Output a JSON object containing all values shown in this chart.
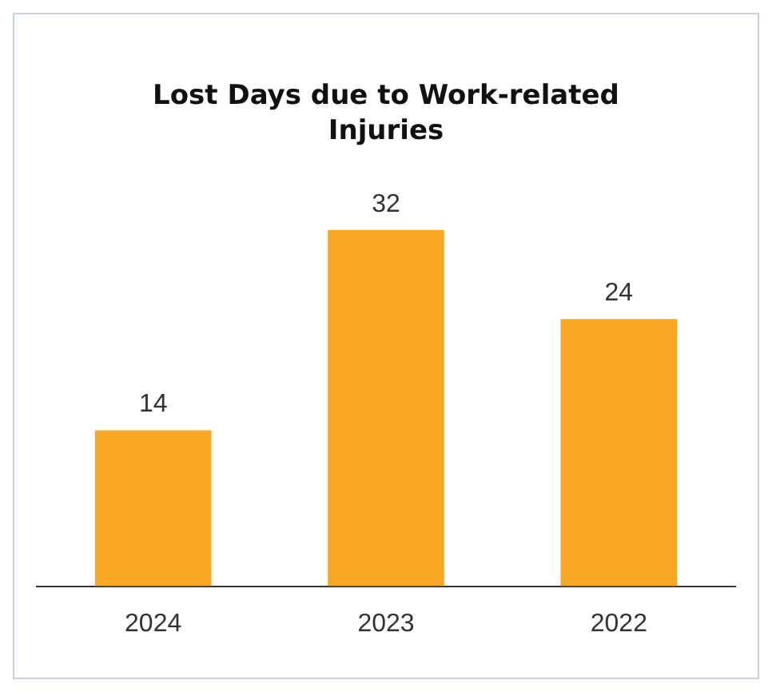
{
  "chart_data": {
    "type": "bar",
    "title": "Lost Days due to Work-related Injuries",
    "categories": [
      "2024",
      "2023",
      "2022"
    ],
    "values": [
      14,
      32,
      24
    ],
    "color": "#f9a826",
    "data_labels": true,
    "grid": false,
    "legend": false
  }
}
